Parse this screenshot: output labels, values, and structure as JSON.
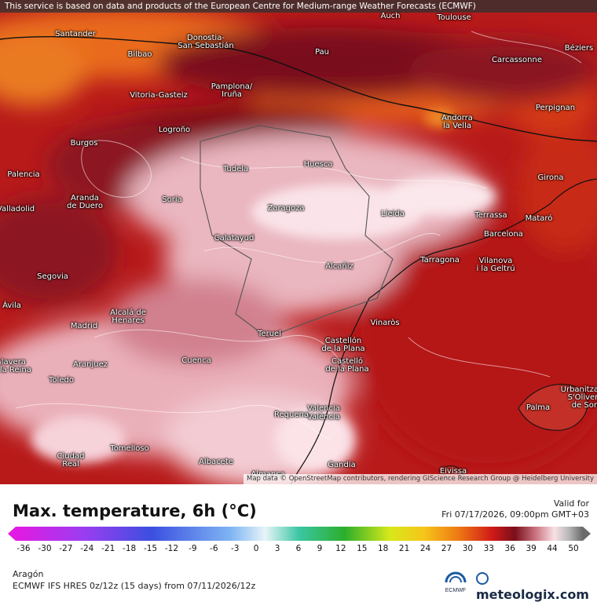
{
  "map": {
    "banner": "This service is based on data and products of the European Centre for Medium-range Weather Forecasts (ECMWF)",
    "attribution": "Map data © OpenStreetMap contributors, rendering GIScience Research Group @ Heidelberg University",
    "cities": [
      {
        "name": "Auch"
      },
      {
        "name": "Toulouse"
      },
      {
        "name": "Santander"
      },
      {
        "name": "Donostia-\nSan Sebastián"
      },
      {
        "name": "Pau"
      },
      {
        "name": "Carcassonne"
      },
      {
        "name": "Béziers"
      },
      {
        "name": "Bilbao"
      },
      {
        "name": "Pamplona/\nIruña"
      },
      {
        "name": "Vitoria-Gasteiz"
      },
      {
        "name": "Perpignan"
      },
      {
        "name": "Andorra\nla Vella"
      },
      {
        "name": "Logroño"
      },
      {
        "name": "Burgos"
      },
      {
        "name": "Tudela"
      },
      {
        "name": "Huesca"
      },
      {
        "name": "Girona"
      },
      {
        "name": "Palencia"
      },
      {
        "name": "Aranda\nde Duero"
      },
      {
        "name": "Soria"
      },
      {
        "name": "Zaragoza"
      },
      {
        "name": "Lleida"
      },
      {
        "name": "Terrassa"
      },
      {
        "name": "Mataró"
      },
      {
        "name": "Valladolid"
      },
      {
        "name": "Barcelona"
      },
      {
        "name": "Calatayud"
      },
      {
        "name": "Tarragona"
      },
      {
        "name": "Vilanova\ni la Geltrú"
      },
      {
        "name": "Alcañiz"
      },
      {
        "name": "Segovia"
      },
      {
        "name": "Ávila"
      },
      {
        "name": "Alcalá de\nHenares"
      },
      {
        "name": "Madrid"
      },
      {
        "name": "Vinaròs"
      },
      {
        "name": "Teruel"
      },
      {
        "name": "Castellón\nde la Plana"
      },
      {
        "name": "Castelló\nde la Plana"
      },
      {
        "name": "Talavera\nde la Reina"
      },
      {
        "name": "Aranjuez"
      },
      {
        "name": "Cuenca"
      },
      {
        "name": "Toledo"
      },
      {
        "name": "Valencia"
      },
      {
        "name": "València"
      },
      {
        "name": "Requena"
      },
      {
        "name": "Palma"
      },
      {
        "name": "Urbanització\nS'Olivera\nde Son"
      },
      {
        "name": "Ciudad\nReal"
      },
      {
        "name": "Tomelloso"
      },
      {
        "name": "Albacete"
      },
      {
        "name": "Gandia"
      },
      {
        "name": "Almansa"
      },
      {
        "name": "Eivissa"
      }
    ]
  },
  "legend": {
    "title": "Max. temperature, 6h (°C)",
    "valid_label": "Valid for",
    "valid_time": "Fri 07/17/2026, 09:00pm GMT+03",
    "ticks": [
      "-36",
      "-30",
      "-27",
      "-24",
      "-21",
      "-18",
      "-15",
      "-12",
      "-9",
      "-6",
      "-3",
      "0",
      "3",
      "6",
      "9",
      "12",
      "15",
      "18",
      "21",
      "24",
      "27",
      "30",
      "33",
      "36",
      "39",
      "44",
      "50"
    ],
    "region": "Aragón",
    "model_line": "ECMWF IFS HRES 0z/12z (15 days) from 07/11/2026/12z",
    "ecmwf_logo": "ECMWF",
    "brand": "meteologix.com"
  },
  "colors": {
    "sea_warm": "#b51818",
    "land_hot": "#f2c2c8",
    "land_very_hot": "#fbe5ea",
    "north_orange": "#e8641a",
    "pyrenees_dark": "#6e0b18",
    "northeast_red": "#d63818"
  }
}
